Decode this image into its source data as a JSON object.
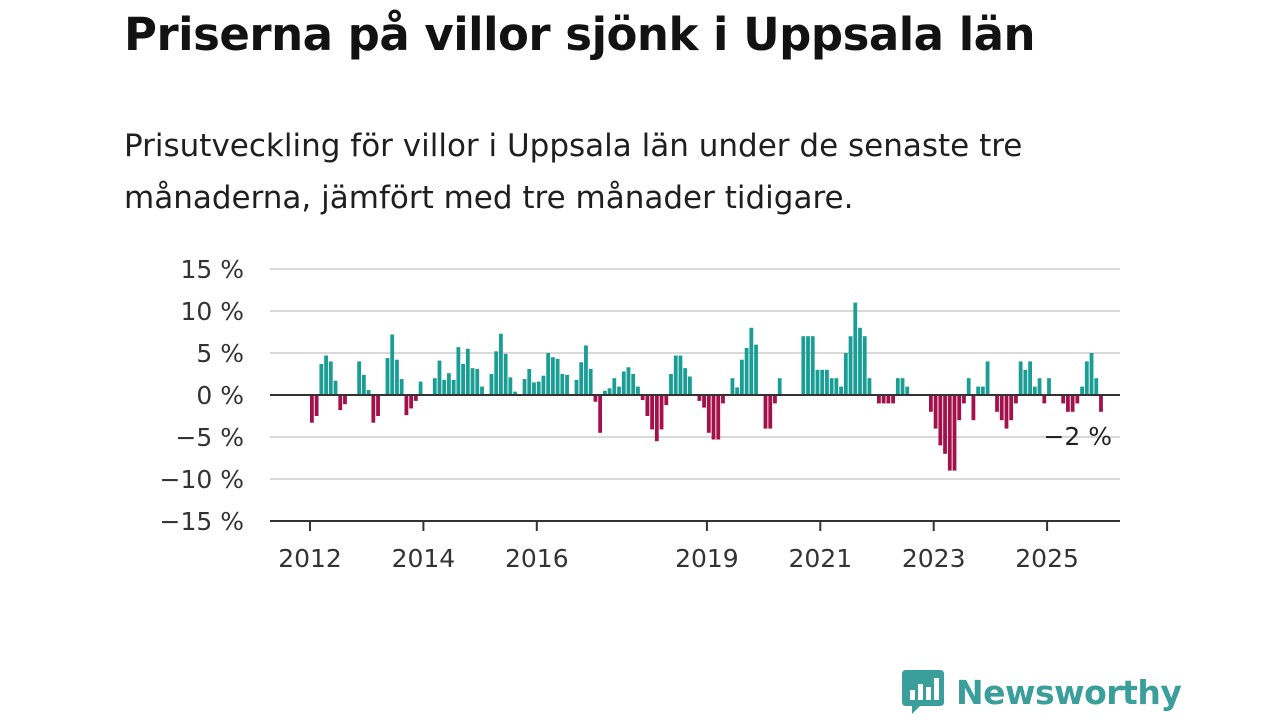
{
  "title": "Priserna på villor sjönk i Uppsala län",
  "subtitle": "Prisutveckling för villor i Uppsala län under de senaste tre månaderna, jämfört med tre månader tidigare.",
  "brand": {
    "name": "Newsworthy",
    "color": "#3a9e9a",
    "icon": "newsworthy-logo-icon"
  },
  "colors": {
    "positive": "#1a9e94",
    "negative": "#a3114a",
    "grid": "#d9d9d9",
    "axis": "#333333"
  },
  "chart_data": {
    "type": "bar",
    "title": "",
    "xlabel": "",
    "ylabel": "",
    "ylim": [
      -15,
      15
    ],
    "y_ticks": [
      15,
      10,
      5,
      0,
      -5,
      -10,
      -15
    ],
    "y_tick_labels": [
      "15 %",
      "10 %",
      "5 %",
      "0 %",
      "−5 %",
      "−10 %",
      "−15 %"
    ],
    "x_ticks": [
      "2012",
      "2014",
      "2016",
      "2019",
      "2021",
      "2023",
      "2025"
    ],
    "x_tick_positions": [
      2012,
      2014,
      2016,
      2019,
      2021,
      2023,
      2025
    ],
    "x_start": 2012.0,
    "annotation": {
      "label": "−2 %",
      "value": -2
    },
    "values": [
      -3.3,
      -2.5,
      3.7,
      4.7,
      4.0,
      1.7,
      -1.8,
      -1.1,
      0,
      0,
      4.0,
      2.4,
      0.6,
      -3.3,
      -2.5,
      0,
      4.4,
      7.2,
      4.2,
      1.9,
      -2.4,
      -1.6,
      -0.7,
      1.6,
      0,
      0,
      2.0,
      4.1,
      1.8,
      2.6,
      1.8,
      5.7,
      3.7,
      5.5,
      3.2,
      3.1,
      1.0,
      0,
      2.5,
      5.2,
      7.3,
      4.9,
      2.1,
      0.4,
      0,
      1.9,
      3.1,
      1.5,
      1.6,
      2.3,
      5.0,
      4.5,
      4.3,
      2.5,
      2.4,
      0,
      1.8,
      3.9,
      5.9,
      3.1,
      -0.8,
      -4.5,
      0.5,
      0.8,
      2.0,
      1.0,
      2.8,
      3.3,
      2.5,
      1.0,
      -0.6,
      -2.5,
      -4.1,
      -5.5,
      -4.1,
      -1.2,
      2.5,
      4.7,
      4.7,
      3.2,
      2.2,
      0,
      -0.7,
      -1.5,
      -4.5,
      -5.3,
      -5.3,
      -1.0,
      0,
      2.0,
      0.9,
      4.2,
      5.6,
      8.0,
      6.0,
      0,
      -4.0,
      -4.0,
      -1.0,
      2.0,
      0,
      0,
      0,
      0,
      7.0,
      7.0,
      7.0,
      3.0,
      3.0,
      3.0,
      2.0,
      2.0,
      1.0,
      5.0,
      7.0,
      11.0,
      8.0,
      7.0,
      2.0,
      0,
      -1.0,
      -1.0,
      -1.0,
      -1.0,
      2.0,
      2.0,
      1.0,
      0,
      0,
      0,
      0,
      -2.0,
      -4.0,
      -6.0,
      -7.0,
      -9.0,
      -9.0,
      -3.0,
      -1.0,
      2.0,
      -3.0,
      1.0,
      1.0,
      4.0,
      0,
      -2.0,
      -3.0,
      -4.0,
      -3.0,
      -1.0,
      4.0,
      3.0,
      4.0,
      1.0,
      2.0,
      -1.0,
      2.0,
      0,
      0,
      -1.0,
      -2.0,
      -2.0,
      -1.0,
      1.0,
      4.0,
      5.0,
      2.0,
      -2.0
    ]
  }
}
